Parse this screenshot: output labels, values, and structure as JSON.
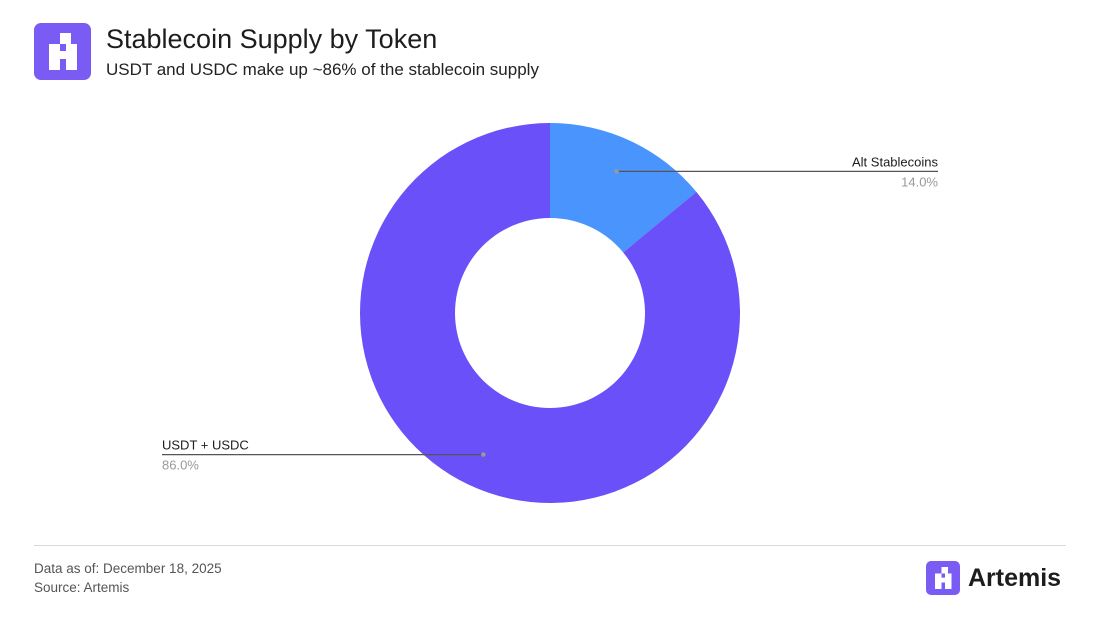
{
  "header": {
    "title": "Stablecoin Supply by Token",
    "subtitle": "USDT and USDC make up ~86% of the stablecoin supply"
  },
  "logo": {
    "icon": "artemis-logo-icon",
    "color": "#7a5cf5"
  },
  "chart_data": {
    "type": "pie",
    "style": "donut",
    "title": "Stablecoin Supply by Token",
    "subtitle": "USDT and USDC make up ~86% of the stablecoin supply",
    "slices": [
      {
        "label": "Alt Stablecoins",
        "value": 14.0,
        "value_label": "14.0%",
        "color": "#4a95fd"
      },
      {
        "label": "USDT + USDC",
        "value": 86.0,
        "value_label": "86.0%",
        "color": "#6a50f8"
      }
    ],
    "start_angle": "12 o'clock",
    "direction": "clockwise",
    "label_placement": "leader lines"
  },
  "footer": {
    "date": "Data as of: December 18, 2025",
    "source": "Source: Artemis",
    "brand": "Artemis"
  },
  "colors": {
    "brand": "#7a5cf5",
    "leader_line": "#555555",
    "value_label": "#999999"
  }
}
